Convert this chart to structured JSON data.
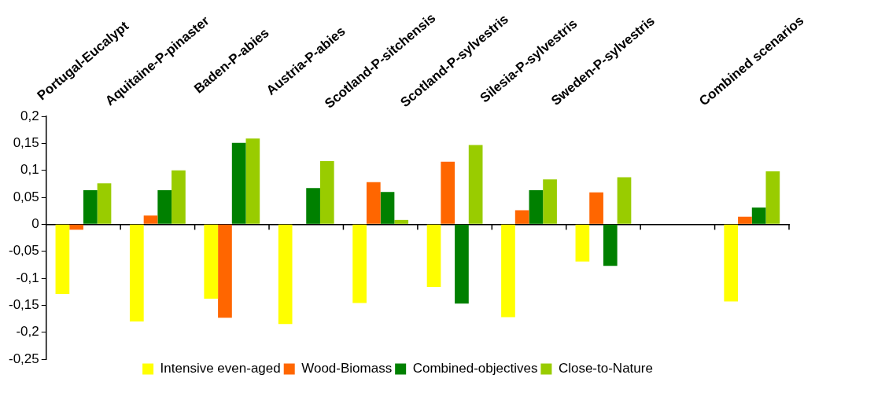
{
  "chart_data": {
    "type": "bar",
    "categories": [
      "Portugal-Eucalypt",
      "Aquitaine-P-pinaster",
      "Baden-P-abies",
      "Austria-P-abies",
      "Scotland-P-sitchensis",
      "Scotland-P-sylvestris",
      "Silesia-P-sylvestris",
      "Sweden-P-sylvestris",
      null,
      "Combined scenarios"
    ],
    "series": [
      {
        "name": "Intensive even-aged",
        "color": "#ffff00",
        "values": [
          -0.129,
          -0.18,
          -0.138,
          -0.185,
          -0.146,
          -0.116,
          -0.172,
          -0.069,
          null,
          -0.143
        ]
      },
      {
        "name": "Wood-Biomass",
        "color": "#ff6600",
        "values": [
          -0.01,
          0.016,
          -0.173,
          null,
          0.078,
          0.116,
          0.026,
          0.059,
          null,
          0.014
        ]
      },
      {
        "name": "Combined-objectives",
        "color": "#008000",
        "values": [
          0.063,
          0.063,
          0.151,
          0.067,
          0.06,
          -0.147,
          0.063,
          -0.077,
          null,
          0.031
        ]
      },
      {
        "name": "Close-to-Nature",
        "color": "#99cc00",
        "values": [
          0.076,
          0.1,
          0.159,
          0.117,
          0.008,
          0.147,
          0.083,
          0.087,
          null,
          0.098
        ]
      }
    ],
    "ylim": [
      -0.25,
      0.2
    ],
    "yticks": [
      {
        "value": -0.25,
        "label": "-0,25"
      },
      {
        "value": -0.2,
        "label": "-0,2"
      },
      {
        "value": -0.15,
        "label": "-0,15"
      },
      {
        "value": -0.1,
        "label": "-0,1"
      },
      {
        "value": -0.05,
        "label": "-0,05"
      },
      {
        "value": 0,
        "label": "0"
      },
      {
        "value": 0.05,
        "label": "0,05"
      },
      {
        "value": 0.1,
        "label": "0,1"
      },
      {
        "value": 0.15,
        "label": "0,15"
      },
      {
        "value": 0.2,
        "label": "0,2"
      }
    ],
    "legend": "bottom"
  }
}
